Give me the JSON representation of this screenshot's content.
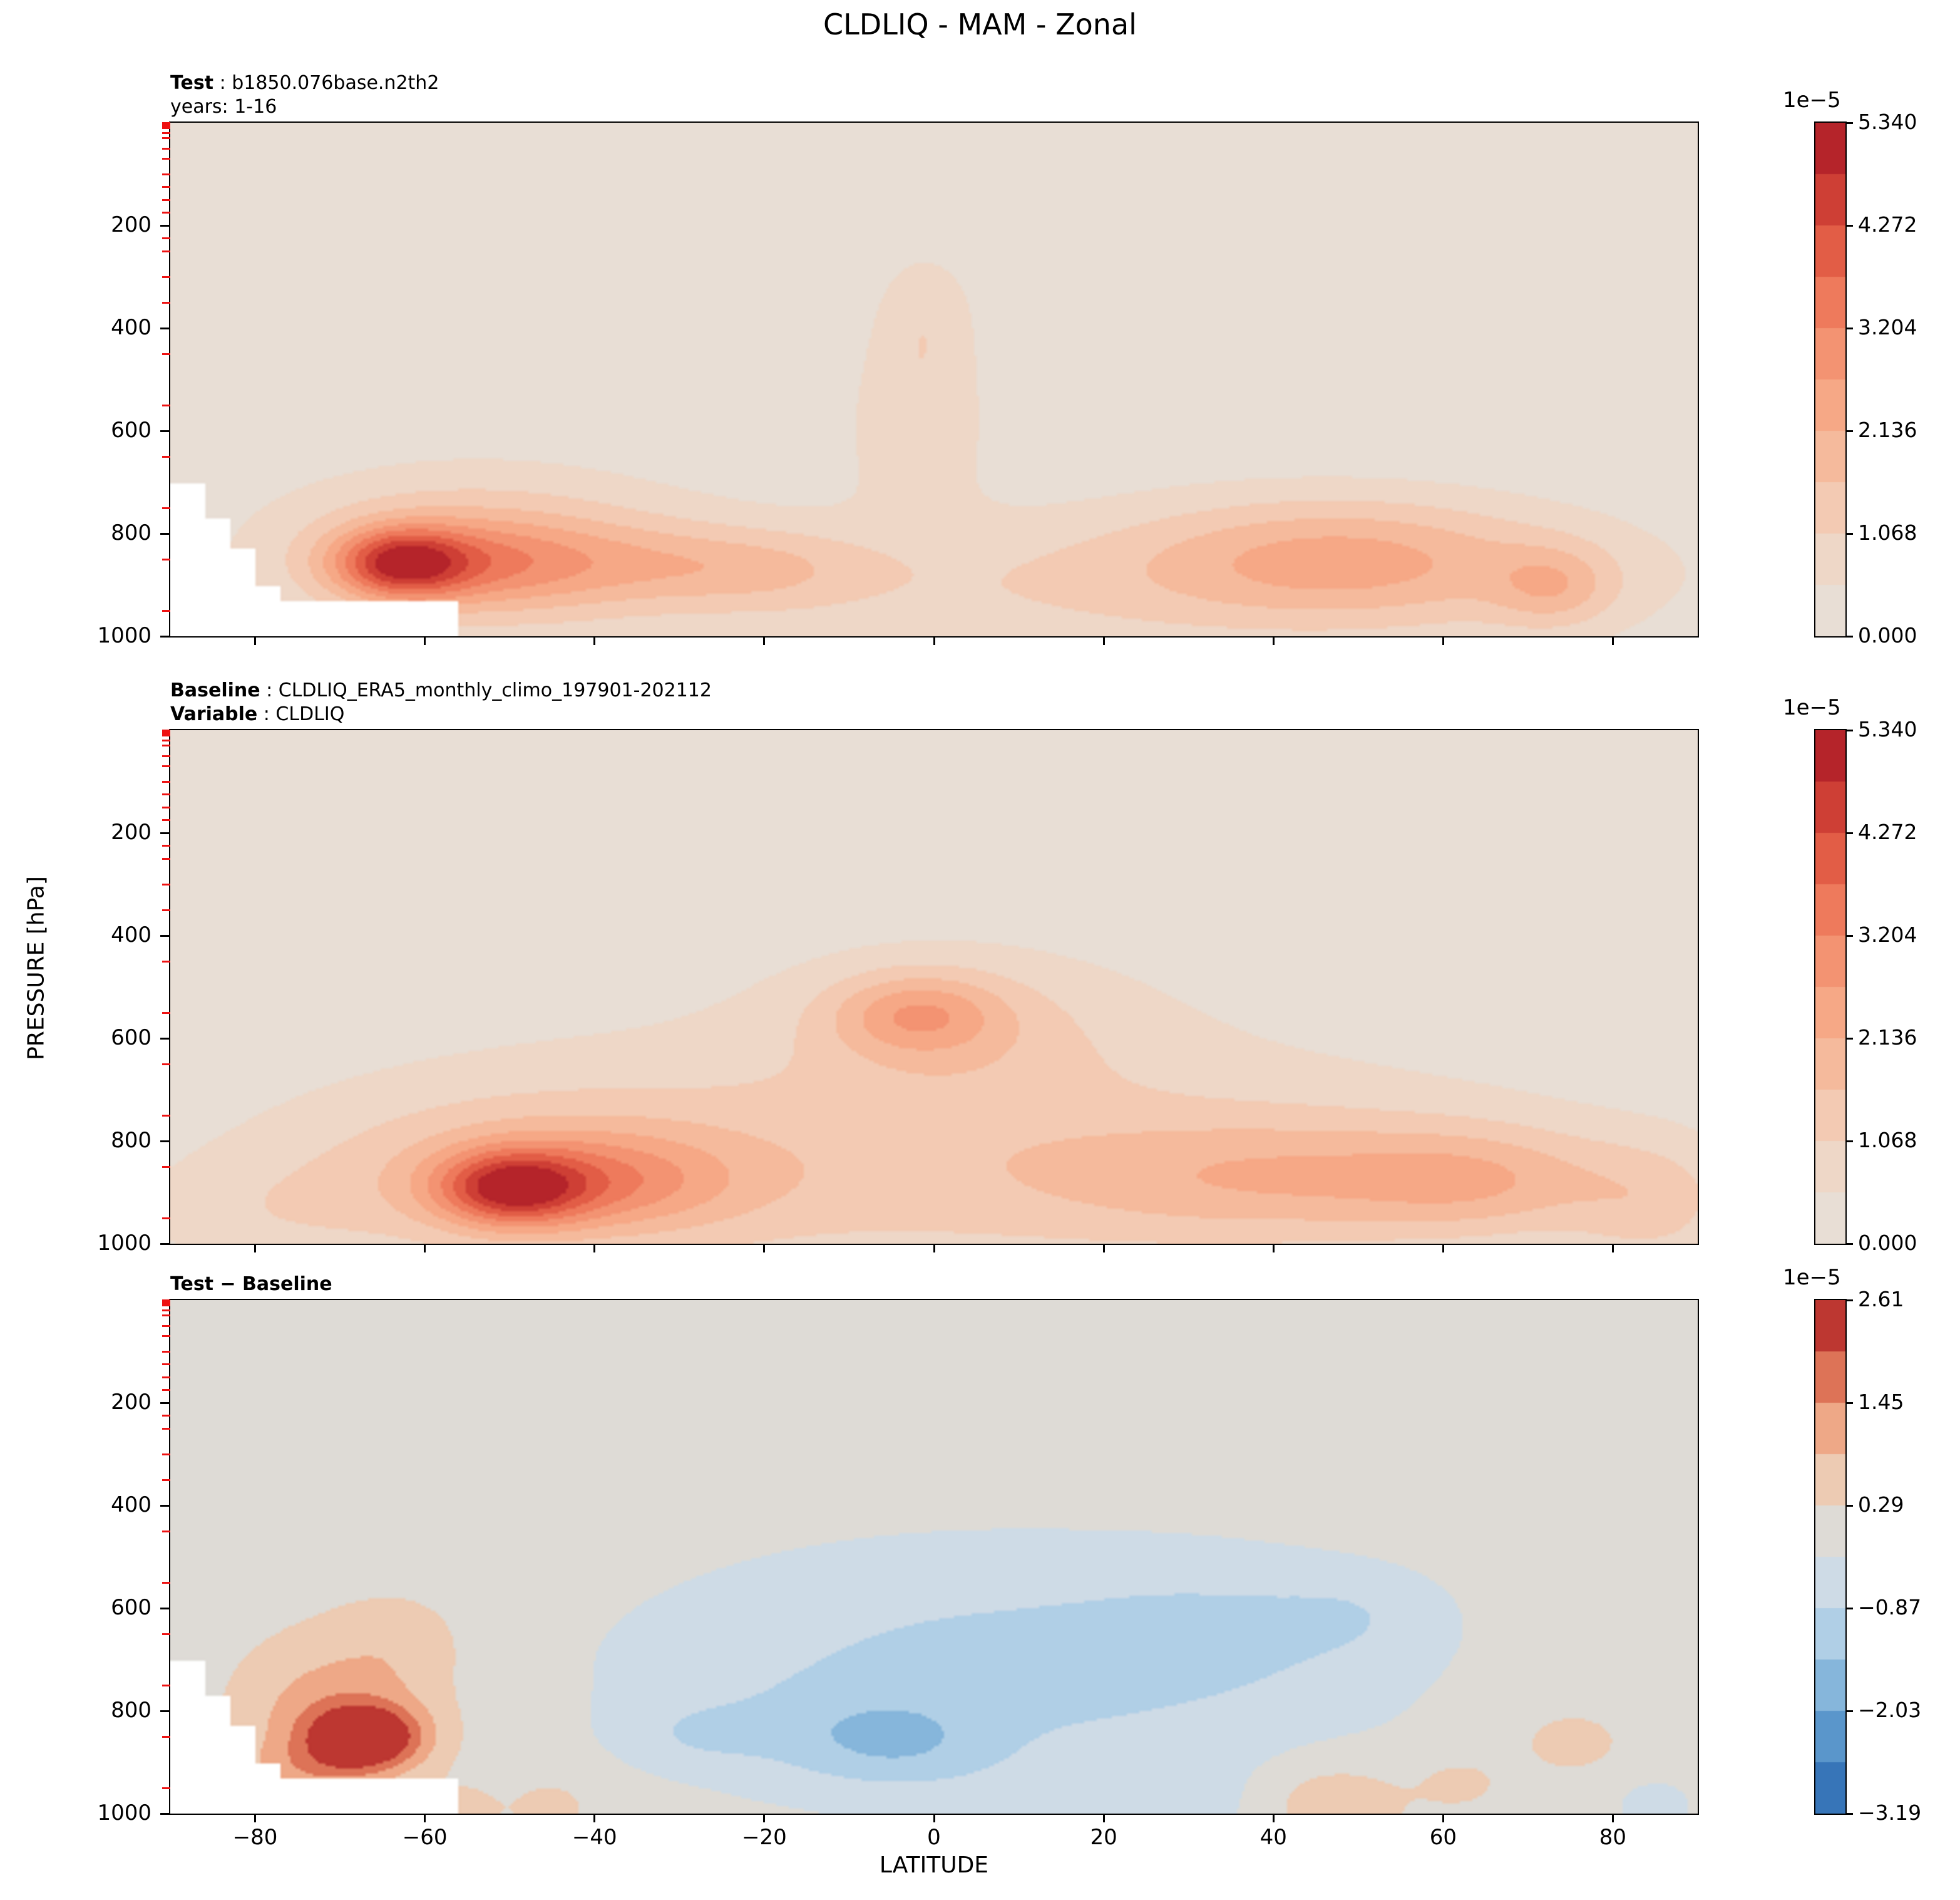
{
  "figure": {
    "title": "CLDLIQ - MAM - Zonal",
    "xlabel": "LATITUDE",
    "ylabel": "PRESSURE [hPa]",
    "background": "#ffffff"
  },
  "chart_data": {
    "type": "heatmap",
    "subtype": "filled-contour latitude-pressure zonal mean, 3 stacked panels",
    "x": {
      "label": "LATITUDE",
      "range": [
        -90,
        90
      ],
      "ticks": [
        -80,
        -60,
        -40,
        -20,
        0,
        20,
        40,
        60,
        80
      ],
      "tick_labels": [
        "−80",
        "−60",
        "−40",
        "−20",
        "0",
        "20",
        "40",
        "60",
        "80"
      ]
    },
    "y": {
      "label": "PRESSURE [hPa]",
      "range_top": 0,
      "range_bottom": 1000,
      "ticks": [
        200,
        400,
        600,
        800,
        1000
      ]
    },
    "model_level_marks_hpa": [
      1,
      2,
      3,
      5,
      7,
      10,
      20,
      30,
      50,
      70,
      100,
      125,
      150,
      175,
      225,
      250,
      300,
      350,
      450,
      550,
      650,
      750,
      850,
      950
    ],
    "model_level_tick_color": "#ee1111",
    "features_format": "[lat_deg, pressure_hpa, amplitude_in_1e-5, sigma_lat_deg, sigma_p_hpa]",
    "mask_steps": [
      [
        -90,
        700
      ],
      [
        -86,
        770
      ],
      [
        -83,
        830
      ],
      [
        -80,
        900
      ],
      [
        -77,
        930
      ],
      [
        -56,
        null
      ]
    ],
    "colormaps": {
      "sequential_red": [
        [
          0,
          "#e5e0da"
        ],
        [
          0.11,
          "#ecdccf"
        ],
        [
          0.22,
          "#f2cfba"
        ],
        [
          0.33,
          "#f5bda1"
        ],
        [
          0.44,
          "#f6aa88"
        ],
        [
          0.55,
          "#f39372"
        ],
        [
          0.66,
          "#ed785a"
        ],
        [
          0.77,
          "#df5742"
        ],
        [
          0.88,
          "#c73630"
        ],
        [
          1,
          "#a81726"
        ]
      ],
      "diverging_rdbu": [
        [
          0,
          "#2a66ae"
        ],
        [
          0.1,
          "#4484c2"
        ],
        [
          0.2,
          "#6fa7d3"
        ],
        [
          0.3,
          "#9cc4e2"
        ],
        [
          0.4,
          "#c3d9ea"
        ],
        [
          0.5,
          "#d8dde2"
        ],
        [
          0.552,
          "#dedbd6"
        ],
        [
          0.6,
          "#e9d9c9"
        ],
        [
          0.7,
          "#f1bd9d"
        ],
        [
          0.8,
          "#ea9271"
        ],
        [
          0.9,
          "#d0543c"
        ],
        [
          1,
          "#aa1a26"
        ]
      ]
    },
    "panels": [
      {
        "id": "test",
        "annotation": [
          {
            "bold": "Test",
            "rest": " : b1850.076base.n2th2"
          },
          {
            "bold": "",
            "rest": "years: 1-16"
          }
        ],
        "cmap": "sequential_red",
        "mask_antarctica": true,
        "colorbar": {
          "scale_label": "1e−5",
          "vmin": 0,
          "vmax": 5.34,
          "n_levels": 10,
          "tick_values": [
            0,
            1.068,
            2.136,
            3.204,
            4.272,
            5.34
          ],
          "tick_labels": [
            "0.000",
            "1.068",
            "2.136",
            "3.204",
            "4.272",
            "5.340"
          ]
        },
        "features": [
          [
            -63,
            858,
            3.2,
            5.5,
            48
          ],
          [
            -52,
            860,
            1.8,
            11,
            62
          ],
          [
            -55,
            820,
            1.2,
            17,
            110
          ],
          [
            -20,
            868,
            1.0,
            9,
            55
          ],
          [
            -33,
            860,
            0.6,
            8,
            60
          ],
          [
            -2,
            560,
            0.85,
            6,
            130
          ],
          [
            -1,
            360,
            0.7,
            4.5,
            95
          ],
          [
            47,
            845,
            1.5,
            17,
            85
          ],
          [
            60,
            875,
            0.6,
            22,
            90
          ],
          [
            73,
            905,
            1.15,
            5,
            55
          ],
          [
            12,
            900,
            0.5,
            25,
            90
          ],
          [
            0,
            950,
            0.45,
            70,
            220
          ]
        ]
      },
      {
        "id": "baseline",
        "annotation": [
          {
            "bold": "Baseline",
            "rest": " : CLDLIQ_ERA5_monthly_climo_197901-202112"
          },
          {
            "bold": "Variable",
            "rest": " : CLDLIQ"
          }
        ],
        "cmap": "sequential_red",
        "mask_antarctica": false,
        "colorbar": {
          "scale_label": "1e−5",
          "vmin": 0,
          "vmax": 5.34,
          "n_levels": 10,
          "tick_values": [
            0,
            1.068,
            2.136,
            3.204,
            4.272,
            5.34
          ],
          "tick_labels": [
            "0.000",
            "1.068",
            "2.136",
            "3.204",
            "4.272",
            "5.340"
          ]
        },
        "features": [
          [
            -50,
            893,
            3.0,
            6,
            50
          ],
          [
            -40,
            880,
            1.5,
            11,
            65
          ],
          [
            -48,
            860,
            1.1,
            20,
            110
          ],
          [
            -2,
            552,
            1.6,
            7,
            55
          ],
          [
            3,
            590,
            0.8,
            14,
            110
          ],
          [
            45,
            870,
            1.4,
            22,
            85
          ],
          [
            65,
            880,
            0.9,
            10,
            70
          ],
          [
            85,
            930,
            0.9,
            7,
            90
          ],
          [
            0,
            880,
            0.8,
            45,
            160
          ],
          [
            0,
            700,
            0.5,
            60,
            260
          ],
          [
            -80,
            950,
            0.5,
            12,
            80
          ]
        ]
      },
      {
        "id": "difference",
        "annotation": [
          {
            "bold": "Test − Baseline",
            "rest": ""
          }
        ],
        "cmap": "diverging_rdbu",
        "mask_antarctica": true,
        "colorbar": {
          "scale_label": "1e−5",
          "vmin": -3.19,
          "vmax": 2.61,
          "n_levels": 10,
          "tick_values": [
            -3.19,
            -2.03,
            -0.87,
            0.29,
            1.45,
            2.61
          ],
          "tick_labels": [
            "−3.19",
            "−2.03",
            "−0.87",
            "0.29",
            "1.45",
            "2.61"
          ]
        },
        "features": [
          [
            -67,
            852,
            2.6,
            4.5,
            42
          ],
          [
            -68,
            820,
            0.9,
            8,
            85
          ],
          [
            -74,
            780,
            0.5,
            7,
            110
          ],
          [
            -63,
            660,
            0.55,
            6,
            70
          ],
          [
            -74,
            915,
            0.7,
            6,
            40
          ],
          [
            8,
            720,
            -1.05,
            30,
            170
          ],
          [
            -12,
            850,
            -0.55,
            9,
            70
          ],
          [
            -28,
            845,
            -0.5,
            6,
            45
          ],
          [
            -3,
            865,
            -0.6,
            7,
            55
          ],
          [
            35,
            640,
            -0.45,
            12,
            90
          ],
          [
            50,
            610,
            -0.4,
            7,
            60
          ],
          [
            47,
            980,
            0.9,
            6,
            55
          ],
          [
            62,
            940,
            0.5,
            4,
            40
          ],
          [
            75,
            860,
            0.6,
            4.5,
            45
          ],
          [
            85,
            985,
            -0.45,
            4,
            45
          ],
          [
            -45,
            985,
            0.5,
            4,
            45
          ],
          [
            -55,
            990,
            0.4,
            3,
            40
          ],
          [
            22,
            990,
            -0.5,
            12,
            60
          ]
        ]
      }
    ]
  }
}
